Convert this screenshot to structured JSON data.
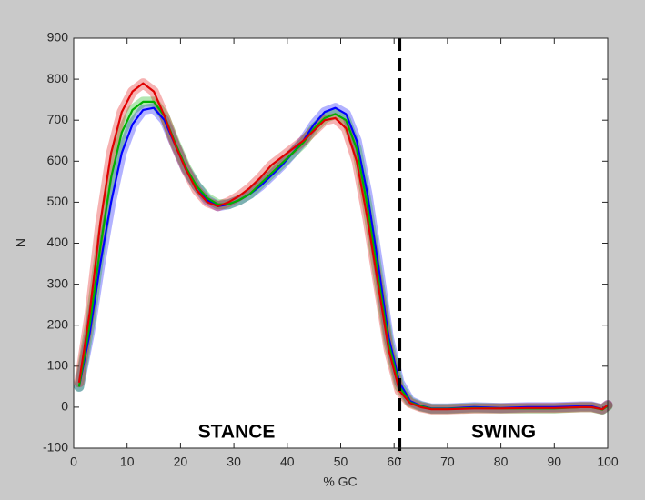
{
  "chart_data": {
    "type": "line",
    "x_label": "% GC",
    "y_label": "N",
    "annotations": [
      "STANCE",
      "SWING"
    ],
    "divider_x": 61,
    "xlim": [
      0,
      100
    ],
    "xticks": [
      0,
      10,
      20,
      30,
      40,
      50,
      60,
      70,
      80,
      90,
      100
    ],
    "ylim": [
      -100,
      900
    ],
    "yticks": [
      -100,
      0,
      100,
      200,
      300,
      400,
      500,
      600,
      700,
      800,
      900
    ],
    "x": [
      1,
      3,
      5,
      7,
      9,
      11,
      13,
      15,
      17,
      19,
      21,
      23,
      25,
      27,
      29,
      31,
      33,
      35,
      37,
      39,
      41,
      43,
      45,
      47,
      49,
      51,
      53,
      55,
      57,
      59,
      61,
      63,
      65,
      67,
      70,
      75,
      80,
      85,
      90,
      95,
      97,
      99,
      100
    ],
    "series": [
      {
        "color": "#0000ff",
        "values": [
          50,
          180,
          350,
          500,
          620,
          690,
          725,
          730,
          700,
          640,
          580,
          540,
          505,
          490,
          495,
          505,
          520,
          540,
          565,
          590,
          620,
          650,
          690,
          720,
          730,
          715,
          650,
          520,
          350,
          170,
          60,
          15,
          3,
          -3,
          -3,
          0,
          -2,
          0,
          0,
          2,
          2,
          -5,
          5
        ]
      },
      {
        "color": "#00b000",
        "values": [
          50,
          200,
          390,
          560,
          670,
          725,
          745,
          745,
          710,
          645,
          585,
          540,
          510,
          495,
          495,
          505,
          520,
          545,
          570,
          595,
          620,
          645,
          680,
          705,
          715,
          700,
          630,
          490,
          320,
          155,
          50,
          12,
          2,
          -4,
          -4,
          -2,
          -3,
          -3,
          -3,
          0,
          0,
          -6,
          3
        ]
      },
      {
        "color": "#e00000",
        "values": [
          60,
          230,
          450,
          620,
          720,
          770,
          790,
          770,
          710,
          640,
          580,
          530,
          500,
          490,
          500,
          515,
          535,
          560,
          590,
          610,
          630,
          650,
          675,
          700,
          705,
          680,
          600,
          460,
          300,
          140,
          40,
          10,
          0,
          -5,
          -5,
          -3,
          -3,
          -2,
          -2,
          0,
          0,
          -5,
          5
        ]
      }
    ]
  }
}
